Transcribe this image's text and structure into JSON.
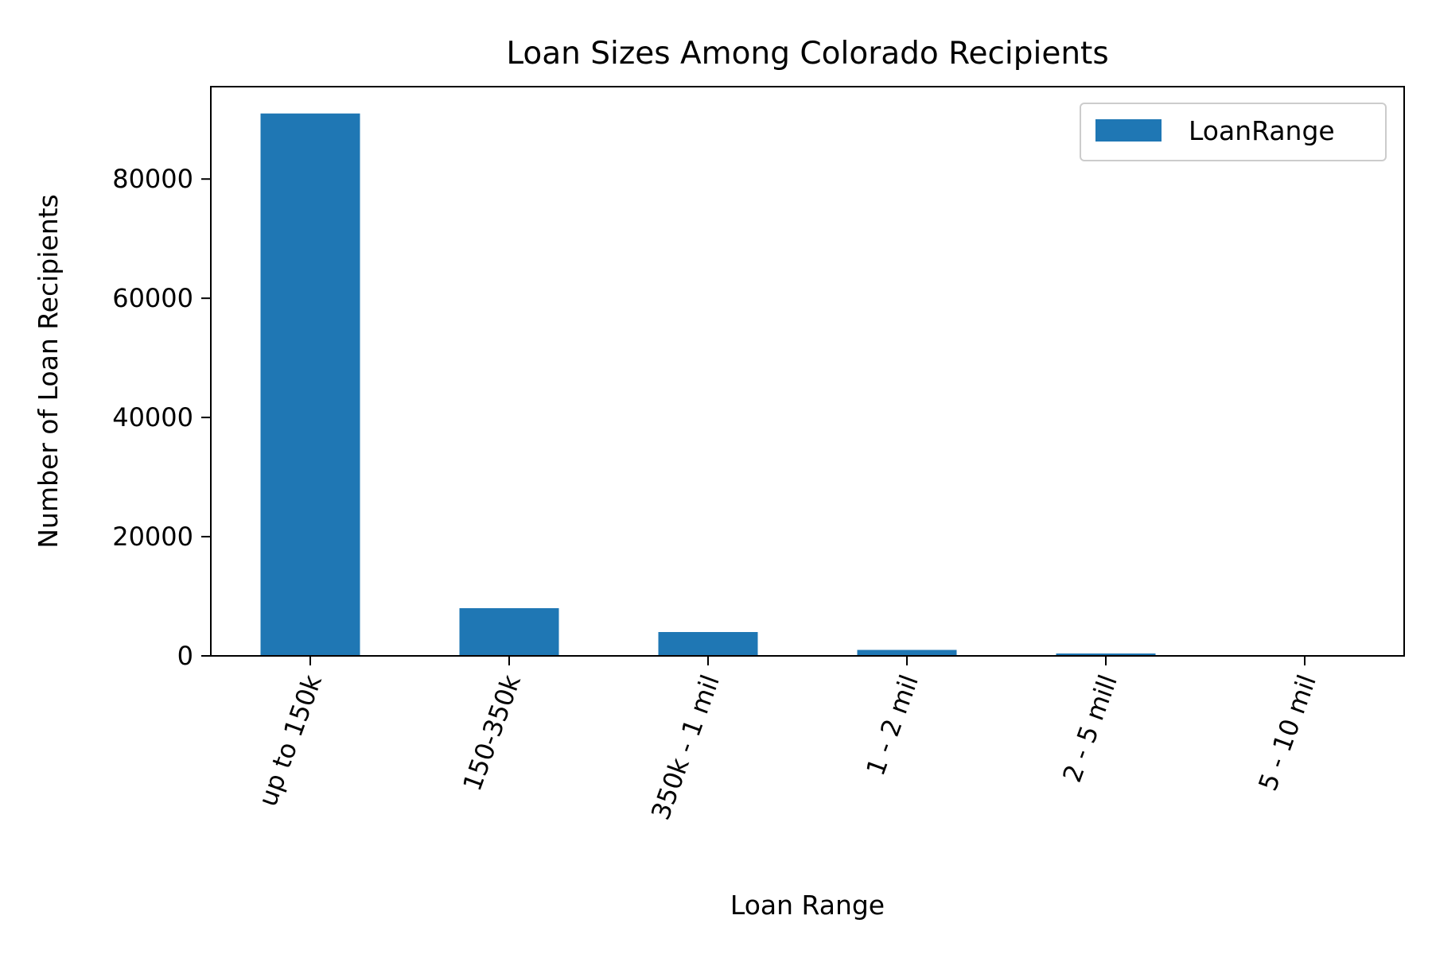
{
  "chart_data": {
    "type": "bar",
    "title": "Loan Sizes Among Colorado Recipients",
    "xlabel": "Loan Range",
    "ylabel": "Number of Loan Recipients",
    "categories": [
      "up to 150k",
      "150-350k",
      "350k - 1 mil",
      "1 - 2 mil",
      "2 - 5 mill",
      "5 - 10 mil"
    ],
    "series": [
      {
        "name": "LoanRange",
        "color": "#1f77b4",
        "values": [
          91000,
          8000,
          4000,
          1000,
          400,
          120
        ]
      }
    ],
    "ylim": [
      0,
      95500
    ],
    "yticks": [
      0,
      20000,
      40000,
      60000,
      80000
    ],
    "ytick_labels": [
      "0",
      "20000",
      "40000",
      "60000",
      "80000"
    ],
    "legend_position": "top-right",
    "grid": false,
    "xtick_rotation_deg": -70
  }
}
